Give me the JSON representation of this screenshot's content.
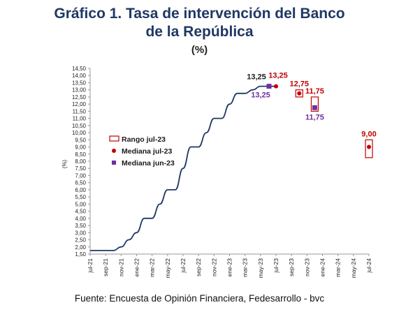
{
  "title_line1": "Gráfico 1. Tasa de intervención del Banco",
  "title_line2": "de la República",
  "subtitle": "(%)",
  "source": "Fuente: Encuesta de Opinión Financiera, Fedesarrollo - bvc",
  "colors": {
    "line": "#1f3864",
    "range": "#c00000",
    "median_jul": "#c00000",
    "median_jun": "#7030a0"
  },
  "chart_data": {
    "type": "line",
    "title": "Gráfico 1. Tasa de intervención del Banco de la República",
    "ylabel": "(%)",
    "xlabel": "",
    "ylim": [
      1.5,
      14.5
    ],
    "yticks": [
      "1,50",
      "2,00",
      "2,50",
      "3,00",
      "3,50",
      "4,00",
      "4,50",
      "5,00",
      "5,50",
      "6,00",
      "6,50",
      "7,00",
      "7,50",
      "8,00",
      "8,50",
      "9,00",
      "9,50",
      "10,00",
      "10,50",
      "11,00",
      "11,50",
      "12,00",
      "12,50",
      "13,00",
      "13,50",
      "14,00",
      "14,50"
    ],
    "xticks": [
      "jul-21",
      "sep-21",
      "nov-21",
      "ene-22",
      "mar-22",
      "may-22",
      "jul-22",
      "sep-22",
      "nov-22",
      "ene-23",
      "mar-23",
      "may-23",
      "jul-23",
      "sep-23",
      "nov-23",
      "ene-24",
      "mar-24",
      "may-24",
      "jul-24"
    ],
    "series": [
      {
        "values": [
          1.75,
          1.75,
          1.75,
          1.75,
          2.0,
          2.5,
          3.0,
          4.0,
          4.0,
          5.0,
          6.0,
          6.0,
          7.5,
          9.0,
          9.0,
          10.0,
          11.0,
          11.0,
          12.0,
          12.75,
          12.75,
          13.0,
          13.25,
          13.25,
          13.25
        ]
      }
    ],
    "legend": {
      "position": "left",
      "items": [
        "Rango jul-23",
        "Mediana jul-23",
        "Mediana jun-23"
      ]
    },
    "forecasts": [
      {
        "date": "jul-23",
        "median_jul": 13.25,
        "label_jul": "13,25",
        "median_jun": 13.25,
        "label_jun": "13,25",
        "range": [
          13.25,
          13.25
        ],
        "label_top": "13,25"
      },
      {
        "date": "oct-23",
        "median_jul": 12.75,
        "label_jul": "12,75",
        "range": [
          12.5,
          13.0
        ]
      },
      {
        "date": "dic-23",
        "median_jul": 11.75,
        "label_jul": "11,75",
        "median_jun": 11.75,
        "label_jun": "11,75",
        "range": [
          11.5,
          12.5
        ]
      },
      {
        "date": "jul-24",
        "median_jul": 9.0,
        "label_jul": "9,00",
        "range": [
          8.25,
          9.5
        ]
      }
    ]
  }
}
